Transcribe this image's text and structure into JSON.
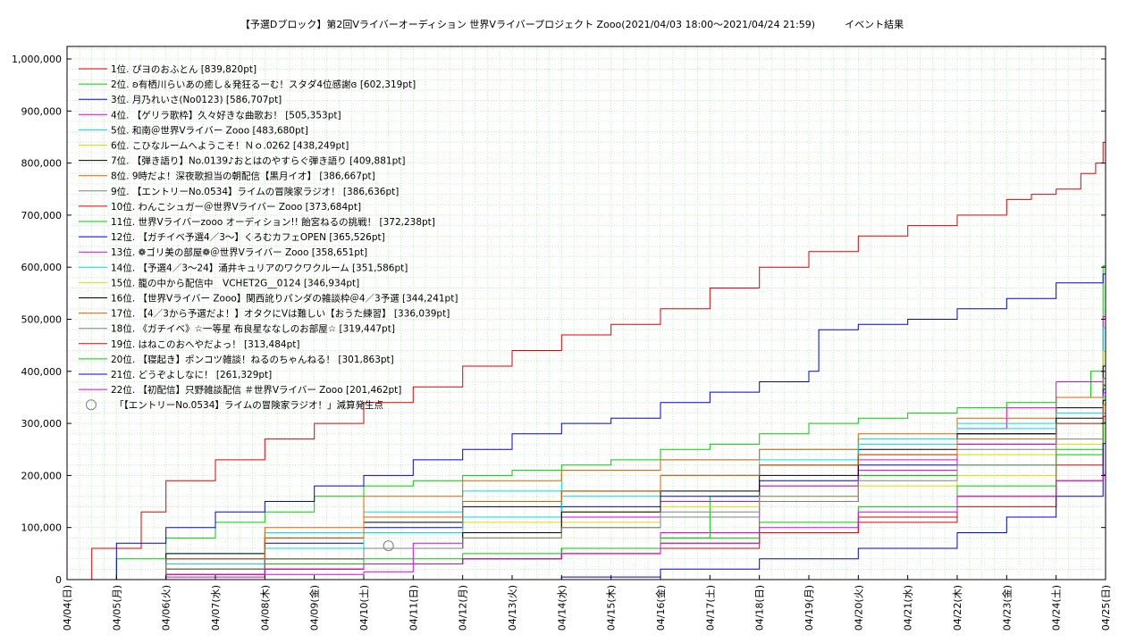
{
  "chart_data": {
    "type": "line",
    "title": "【予選Dブロック】第2回Vライバーオーディション 世界Vライバープロジェクト Zooo(2021/04/03 18:00〜2021/04/24 21:59)　　　イベント結果",
    "xlabel": "",
    "ylabel": "",
    "ylim": [
      0,
      1000000
    ],
    "y_ticks": [
      "0",
      "100,000",
      "200,000",
      "300,000",
      "400,000",
      "500,000",
      "600,000",
      "700,000",
      "800,000",
      "900,000",
      "1,000,000"
    ],
    "x_tick_labels": [
      "04/04(日)",
      "04/05(月)",
      "04/06(火)",
      "04/07(水)",
      "04/08(木)",
      "04/09(金)",
      "04/10(土)",
      "04/11(日)",
      "04/12(月)",
      "04/13(火)",
      "04/14(水)",
      "04/15(木)",
      "04/16(金)",
      "04/17(土)",
      "04/18(日)",
      "04/19(月)",
      "04/20(火)",
      "04/21(水)",
      "04/22(木)",
      "04/23(金)",
      "04/24(土)",
      "04/25(日)"
    ],
    "grid": true,
    "legend_position": "top-left",
    "series": [
      {
        "name": "1位. ぴヨのおふとん [839,820pt]",
        "color": "#e00000",
        "x": [
          0,
          0.5,
          1.5,
          2,
          3,
          4,
          5,
          6,
          7,
          8,
          9,
          10,
          11,
          12,
          13,
          14,
          15,
          16,
          17,
          18,
          19,
          19.5,
          20,
          20.5,
          20.8,
          20.95
        ],
        "values": [
          0,
          60000,
          130000,
          190000,
          230000,
          270000,
          300000,
          340000,
          370000,
          410000,
          440000,
          470000,
          490000,
          520000,
          560000,
          600000,
          630000,
          660000,
          680000,
          700000,
          730000,
          740000,
          750000,
          780000,
          800000,
          839820
        ]
      },
      {
        "name": "2位. ʚ有栖川らいあの癒し＆発狂るーむ！スタダ4位感謝ɞ [602,319pt]",
        "color": "#00cc00",
        "x": [
          0,
          1,
          2,
          3,
          4,
          5,
          6,
          7,
          8,
          9,
          10,
          11,
          12,
          13,
          14,
          15,
          16,
          17,
          18,
          19,
          20,
          20.7,
          20.95
        ],
        "values": [
          0,
          40000,
          80000,
          110000,
          130000,
          160000,
          180000,
          190000,
          200000,
          210000,
          220000,
          230000,
          250000,
          260000,
          280000,
          300000,
          310000,
          320000,
          330000,
          340000,
          350000,
          400000,
          602319
        ]
      },
      {
        "name": "3位. 月乃れいさ(No0123) [586,707pt]",
        "color": "#0000dd",
        "x": [
          0,
          1,
          2,
          3,
          4,
          5,
          6,
          7,
          8,
          9,
          10,
          11,
          12,
          13,
          14,
          15,
          15.2,
          16,
          17,
          18,
          19,
          20,
          20.95
        ],
        "values": [
          0,
          70000,
          100000,
          130000,
          150000,
          180000,
          200000,
          230000,
          250000,
          280000,
          300000,
          310000,
          340000,
          360000,
          380000,
          400000,
          480000,
          490000,
          500000,
          520000,
          540000,
          570000,
          586707
        ]
      },
      {
        "name": "4位. 【ゲリラ歌枠】久々好きな曲歌お！ [505,353pt]",
        "color": "#e000e0",
        "x": [
          0,
          2,
          4,
          6,
          8,
          10,
          12,
          14,
          16,
          18,
          19,
          20,
          20.95
        ],
        "values": [
          0,
          10000,
          20000,
          30000,
          40000,
          60000,
          90000,
          150000,
          230000,
          290000,
          330000,
          380000,
          505353
        ]
      },
      {
        "name": "5位. 和南＠世界Vライバー Zooo [483,680pt]",
        "color": "#00dddd",
        "x": [
          0,
          2,
          4,
          6,
          8,
          10,
          12,
          14,
          16,
          18,
          20,
          20.95
        ],
        "values": [
          0,
          50000,
          90000,
          130000,
          170000,
          210000,
          230000,
          250000,
          270000,
          300000,
          350000,
          483680
        ]
      },
      {
        "name": "6位. こひなルームへようこそ！Ｎｏ.0262 [438,249pt]",
        "color": "#dddd00",
        "x": [
          0,
          2,
          4,
          6,
          8,
          10,
          12,
          14,
          16,
          18,
          20,
          20.95
        ],
        "values": [
          0,
          30000,
          60000,
          90000,
          110000,
          130000,
          150000,
          180000,
          210000,
          240000,
          300000,
          438249
        ]
      },
      {
        "name": "7位. 【弾き語り】No.0139♪おとはのやすらぐ弾き語り [409,881pt]",
        "color": "#000000",
        "x": [
          0,
          2,
          4,
          6,
          8,
          10,
          12,
          14,
          16,
          18,
          20,
          20.95
        ],
        "values": [
          0,
          50000,
          80000,
          110000,
          140000,
          170000,
          200000,
          220000,
          250000,
          280000,
          330000,
          409881
        ]
      },
      {
        "name": "8位. 9時だよ！深夜歌担当の朝配信【黒月イオ】 [386,667pt]",
        "color": "#e06000",
        "x": [
          0,
          2,
          4,
          6,
          8,
          10,
          12,
          14,
          16,
          18,
          20,
          20.95
        ],
        "values": [
          0,
          40000,
          100000,
          160000,
          190000,
          210000,
          230000,
          250000,
          280000,
          310000,
          350000,
          386667
        ]
      },
      {
        "name": "9位. 【エントリーNo.0534】ライムの冒険家ラジオ！ [386,636pt]",
        "color": "#808080",
        "x": [
          0,
          2,
          4,
          6,
          8,
          10,
          12,
          14,
          16,
          18,
          20,
          20.95
        ],
        "values": [
          0,
          20000,
          40000,
          60000,
          80000,
          100000,
          120000,
          150000,
          200000,
          250000,
          300000,
          386636
        ]
      },
      {
        "name": "10位. わんこシュガー＠世界Vライバー Zooo [373,684pt]",
        "color": "#e00000",
        "x": [
          0,
          2,
          4,
          6,
          8,
          10,
          12,
          14,
          16,
          18,
          20,
          20.95
        ],
        "values": [
          0,
          10000,
          20000,
          30000,
          40000,
          50000,
          60000,
          90000,
          110000,
          140000,
          190000,
          373684
        ]
      },
      {
        "name": "11位. 世界Vライバーzooo オーディション!! 飴宮ねるの挑戦！ [372,238pt]",
        "color": "#00cc00",
        "x": [
          0,
          2,
          4,
          6,
          8,
          10,
          12,
          13,
          14,
          16,
          18,
          20,
          20.95
        ],
        "values": [
          0,
          20000,
          30000,
          40000,
          50000,
          60000,
          80000,
          160000,
          180000,
          200000,
          220000,
          250000,
          372238
        ]
      },
      {
        "name": "12位. 【ガチイベ予選4／3〜】くろむカフェOPEN [365,526pt]",
        "color": "#0000dd",
        "x": [
          0,
          2,
          4,
          6,
          8,
          10,
          12,
          14,
          16,
          18,
          20,
          20.95
        ],
        "values": [
          0,
          40000,
          70000,
          100000,
          120000,
          140000,
          160000,
          190000,
          220000,
          260000,
          300000,
          365526
        ]
      },
      {
        "name": "13位. ❁ゴリ美の部屋❁＠世界Vライバー Zooo [358,651pt]",
        "color": "#e000e0",
        "x": [
          0,
          2,
          4,
          6,
          7,
          8,
          10,
          12,
          14,
          16,
          18,
          20,
          20.95
        ],
        "values": [
          0,
          5000,
          10000,
          15000,
          70000,
          90000,
          120000,
          150000,
          180000,
          210000,
          260000,
          300000,
          358651
        ]
      },
      {
        "name": "14位. 【予選4／3〜24】涌井キュリアのワクワクルーム [351,586pt]",
        "color": "#00dddd",
        "x": [
          0,
          2,
          4,
          6,
          8,
          10,
          12,
          14,
          16,
          18,
          20,
          20.95
        ],
        "values": [
          0,
          30000,
          60000,
          90000,
          120000,
          160000,
          200000,
          230000,
          260000,
          290000,
          320000,
          351586
        ]
      },
      {
        "name": "15位. 籠の中から配信中　VCHET2G__0124 [346,934pt]",
        "color": "#dddd00",
        "x": [
          0,
          2,
          4,
          6,
          8,
          10,
          12,
          14,
          16,
          18,
          20,
          20.95
        ],
        "values": [
          0,
          20000,
          40000,
          60000,
          80000,
          110000,
          140000,
          160000,
          180000,
          200000,
          260000,
          346934
        ]
      },
      {
        "name": "16位. 【世界Vライバー Zooo】関西訛りパンダの雑談枠＠4／3予選 [344,241pt]",
        "color": "#000000",
        "x": [
          0,
          2,
          4,
          6,
          8,
          10,
          12,
          14,
          16,
          18,
          20,
          20.95
        ],
        "values": [
          0,
          20000,
          40000,
          60000,
          90000,
          130000,
          170000,
          200000,
          240000,
          280000,
          310000,
          344241
        ]
      },
      {
        "name": "17位. 【4／3から予選だよ！】オタクにVは難しい【おうた練習】 [336,039pt]",
        "color": "#e06000",
        "x": [
          0,
          2,
          4,
          6,
          8,
          10,
          12,
          14,
          16,
          18,
          20,
          20.95
        ],
        "values": [
          0,
          40000,
          80000,
          120000,
          150000,
          170000,
          200000,
          220000,
          240000,
          270000,
          300000,
          336039
        ]
      },
      {
        "name": "18位. 《ガチイベ》☆一等星 布良星ななしのお部屋☆ [319,447pt]",
        "color": "#808080",
        "x": [
          0,
          2,
          4,
          6,
          8,
          10,
          12,
          14,
          16,
          18,
          20,
          20.95
        ],
        "values": [
          0,
          20000,
          40000,
          60000,
          80000,
          100000,
          130000,
          160000,
          190000,
          220000,
          270000,
          319447
        ]
      },
      {
        "name": "19位. はねこのおへやだよっ！ [313,484pt]",
        "color": "#e00000",
        "x": [
          0,
          2,
          4,
          6,
          8,
          10,
          12,
          14,
          16,
          18,
          20,
          20.95
        ],
        "values": [
          0,
          10000,
          20000,
          30000,
          40000,
          50000,
          70000,
          90000,
          120000,
          160000,
          220000,
          313484
        ]
      },
      {
        "name": "20位. 【寝起き】ポンコツ雑談！ねるのちゃんねる！ [301,863pt]",
        "color": "#00cc00",
        "x": [
          0,
          2,
          4,
          6,
          8,
          10,
          12,
          14,
          16,
          18,
          20,
          20.95
        ],
        "values": [
          0,
          10000,
          20000,
          30000,
          40000,
          60000,
          80000,
          110000,
          140000,
          180000,
          240000,
          301863
        ]
      },
      {
        "name": "21位. どうぞよしなに！ [261,329pt]",
        "color": "#0000dd",
        "x": [
          0,
          4,
          8,
          10,
          12,
          14,
          16,
          18,
          19,
          20,
          20.95
        ],
        "values": [
          0,
          0,
          0,
          5000,
          20000,
          40000,
          60000,
          90000,
          120000,
          160000,
          261329
        ]
      },
      {
        "name": "22位. 【初配信】只野雑談配信 ＃世界Vライバー Zooo [201,462pt]",
        "color": "#e000e0",
        "x": [
          0,
          2,
          4,
          6,
          8,
          10,
          12,
          14,
          16,
          18,
          20,
          20.95
        ],
        "values": [
          0,
          10000,
          20000,
          30000,
          40000,
          50000,
          70000,
          100000,
          130000,
          160000,
          190000,
          201462
        ]
      }
    ],
    "marker_legend": "「【エントリーNo.0534】ライムの冒険家ラジオ！」減算発生点",
    "marker_points": [
      {
        "x": 6.5,
        "y": 65000
      }
    ]
  }
}
